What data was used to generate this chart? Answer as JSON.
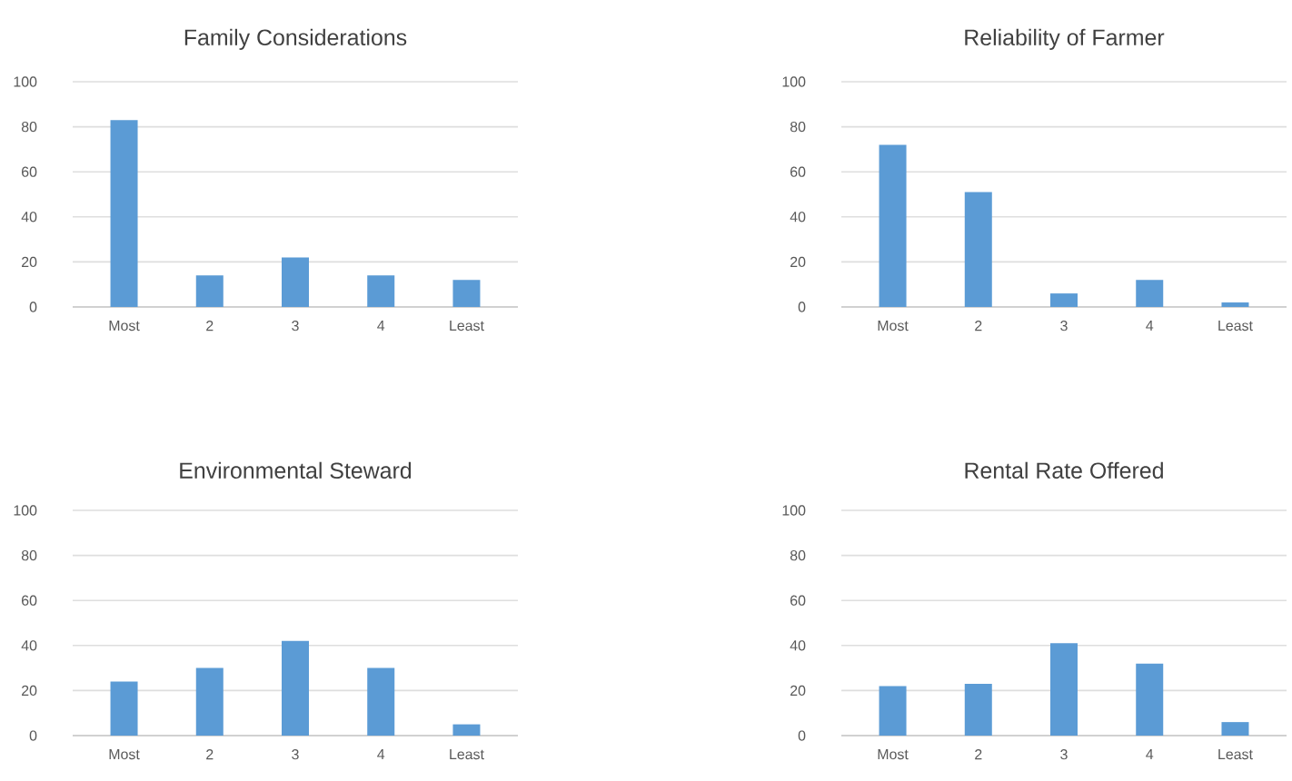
{
  "chart_data": [
    {
      "type": "bar",
      "title": "Family Considerations",
      "categories": [
        "Most",
        "2",
        "3",
        "4",
        "Least"
      ],
      "values": [
        83,
        14,
        22,
        14,
        12
      ],
      "color": "#5b9bd5",
      "ylim": [
        0,
        100
      ],
      "yticks": [
        0,
        20,
        40,
        60,
        80,
        100
      ],
      "grid": "y"
    },
    {
      "type": "bar",
      "title": "Reliability of Farmer",
      "categories": [
        "Most",
        "2",
        "3",
        "4",
        "Least"
      ],
      "values": [
        72,
        51,
        6,
        12,
        2
      ],
      "color": "#5b9bd5",
      "ylim": [
        0,
        100
      ],
      "yticks": [
        0,
        20,
        40,
        60,
        80,
        100
      ],
      "grid": "y"
    },
    {
      "type": "bar",
      "title": "Environmental Steward",
      "categories": [
        "Most",
        "2",
        "3",
        "4",
        "Least"
      ],
      "values": [
        24,
        30,
        42,
        30,
        5
      ],
      "color": "#5b9bd5",
      "ylim": [
        0,
        100
      ],
      "yticks": [
        0,
        20,
        40,
        60,
        80,
        100
      ],
      "grid": "y"
    },
    {
      "type": "bar",
      "title": "Rental Rate Offered",
      "categories": [
        "Most",
        "2",
        "3",
        "4",
        "Least"
      ],
      "values": [
        22,
        23,
        41,
        32,
        6
      ],
      "color": "#5b9bd5",
      "ylim": [
        0,
        100
      ],
      "yticks": [
        0,
        20,
        40,
        60,
        80,
        100
      ],
      "grid": "y"
    }
  ]
}
